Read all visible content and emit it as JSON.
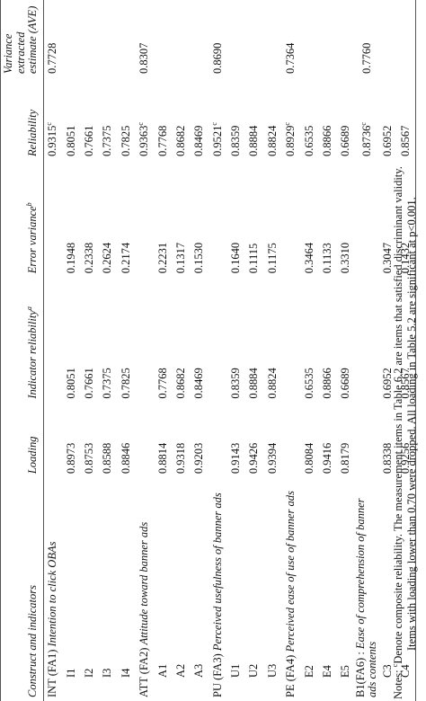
{
  "headers": {
    "construct": "Construct and indicators",
    "loading": "Loading",
    "indicator_reliability": "Indicator reliability",
    "indicator_reliability_sup": "a",
    "error_variance": "Error variance",
    "error_variance_sup": "b",
    "reliability": "Reliability",
    "ave_line1": "Variance extracted",
    "ave_line2": "estimate (AVE)"
  },
  "constructs": [
    {
      "code": "INT (FA1)",
      "name": "Intention to click OBAs",
      "reliability": "0.9315",
      "reliability_sup": "c",
      "ave": "0.7728",
      "items": [
        {
          "label": "I1",
          "loading": "0.8973",
          "indicator_reliability": "0.8051",
          "error_variance": "0.1948",
          "reliability": "0.8051"
        },
        {
          "label": "I2",
          "loading": "0.8753",
          "indicator_reliability": "0.7661",
          "error_variance": "0.2338",
          "reliability": "0.7661"
        },
        {
          "label": "I3",
          "loading": "0.8588",
          "indicator_reliability": "0.7375",
          "error_variance": "0.2624",
          "reliability": "0.7375"
        },
        {
          "label": "I4",
          "loading": "0.8846",
          "indicator_reliability": "0.7825",
          "error_variance": "0.2174",
          "reliability": "0.7825"
        }
      ]
    },
    {
      "code": "ATT (FA2)",
      "name": "Attitude toward banner ads",
      "reliability": "0.9363",
      "reliability_sup": "c",
      "ave": "0.8307",
      "items": [
        {
          "label": "A1",
          "loading": "0.8814",
          "indicator_reliability": "0.7768",
          "error_variance": "0.2231",
          "reliability": "0.7768"
        },
        {
          "label": "A2",
          "loading": "0.9318",
          "indicator_reliability": "0.8682",
          "error_variance": "0.1317",
          "reliability": "0.8682"
        },
        {
          "label": "A3",
          "loading": "0.9203",
          "indicator_reliability": "0.8469",
          "error_variance": "0.1530",
          "reliability": "0.8469"
        }
      ]
    },
    {
      "code": "PU (FA3)",
      "name": "Perceived usefulness of banner ads",
      "reliability": "0.9521",
      "reliability_sup": "c",
      "ave": "0.8690",
      "items": [
        {
          "label": "U1",
          "loading": "0.9143",
          "indicator_reliability": "0.8359",
          "error_variance": "0.1640",
          "reliability": "0.8359"
        },
        {
          "label": "U2",
          "loading": "0.9426",
          "indicator_reliability": "0.8884",
          "error_variance": "0.1115",
          "reliability": "0.8884"
        },
        {
          "label": "U3",
          "loading": "0.9394",
          "indicator_reliability": "0.8824",
          "error_variance": "0.1175",
          "reliability": "0.8824"
        }
      ]
    },
    {
      "code": "PE (FA4)",
      "name": "Perceived ease of use of banner ads",
      "reliability": "0.8929",
      "reliability_sup": "c",
      "ave": "0.7364",
      "items": [
        {
          "label": "E2",
          "loading": "0.8084",
          "indicator_reliability": "0.6535",
          "error_variance": "0.3464",
          "reliability": "0.6535"
        },
        {
          "label": "E4",
          "loading": "0.9416",
          "indicator_reliability": "0.8866",
          "error_variance": "0.1133",
          "reliability": "0.8866"
        },
        {
          "label": "E5",
          "loading": "0.8179",
          "indicator_reliability": "0.6689",
          "error_variance": "0.3310",
          "reliability": "0.6689"
        }
      ]
    },
    {
      "code": "B1(FA6) :",
      "name": "Ease of comprehension of banner ads contents",
      "reliability": "0.8736",
      "reliability_sup": "c",
      "ave": "0.7760",
      "items": [
        {
          "label": "C3",
          "loading": "0.8338",
          "indicator_reliability": "0.6952",
          "error_variance": "0.3047",
          "reliability": "0.6952"
        },
        {
          "label": "C4",
          "loading": "0.9256",
          "indicator_reliability": "0.8567",
          "error_variance": "0.1432",
          "reliability": "0.8567"
        }
      ]
    }
  ],
  "notes": {
    "line1_prefix": "Notes: ",
    "line1_sup": "c",
    "line1_text": "Denote composite reliability. The measurement items in Table 6.2 are items that satisfied discriminant validity.",
    "line2_text": "Items with loading lower than 0.70 were dropped. All loading in Table 5.2 are significant at p<0.001."
  }
}
